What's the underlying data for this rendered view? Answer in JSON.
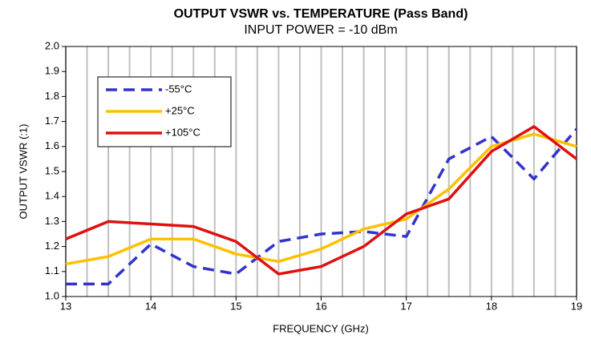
{
  "chart_data": {
    "type": "line",
    "title": "OUTPUT VSWR vs. TEMPERATURE (Pass Band)",
    "subtitle": "INPUT POWER = -10 dBm",
    "x_label": "FREQUENCY (GHz)",
    "y_label": "OUTPUT VSWR (:1)",
    "x": [
      13,
      13.5,
      14,
      14.5,
      15,
      15.5,
      16,
      16.5,
      17,
      17.5,
      18,
      18.5,
      19
    ],
    "series": [
      {
        "name": "-55°C",
        "color": "#3333cc",
        "dashed": true,
        "values": [
          1.05,
          1.05,
          1.21,
          1.12,
          1.09,
          1.22,
          1.25,
          1.26,
          1.24,
          1.55,
          1.64,
          1.47,
          1.67
        ]
      },
      {
        "name": "+25°C",
        "color": "#ffc000",
        "dashed": false,
        "values": [
          1.13,
          1.16,
          1.23,
          1.23,
          1.17,
          1.14,
          1.19,
          1.27,
          1.31,
          1.43,
          1.6,
          1.65,
          1.6
        ]
      },
      {
        "name": "+105°C",
        "color": "#e01010",
        "dashed": false,
        "values": [
          1.23,
          1.3,
          1.29,
          1.28,
          1.22,
          1.09,
          1.12,
          1.2,
          1.33,
          1.39,
          1.58,
          1.68,
          1.55
        ]
      }
    ],
    "xlim": [
      13,
      19
    ],
    "xticks": [
      13,
      14,
      15,
      16,
      17,
      18,
      19
    ],
    "x_minor_divisions": 4,
    "ylim": [
      1,
      2
    ],
    "yticks": [
      {
        "value": 1,
        "label": "1.0"
      },
      1.1,
      1.2,
      1.3,
      1.4,
      1.5,
      1.6,
      1.7,
      1.8,
      1.9,
      {
        "value": 2,
        "label": "2.0"
      }
    ],
    "grid": "x",
    "legend": "upper left"
  }
}
